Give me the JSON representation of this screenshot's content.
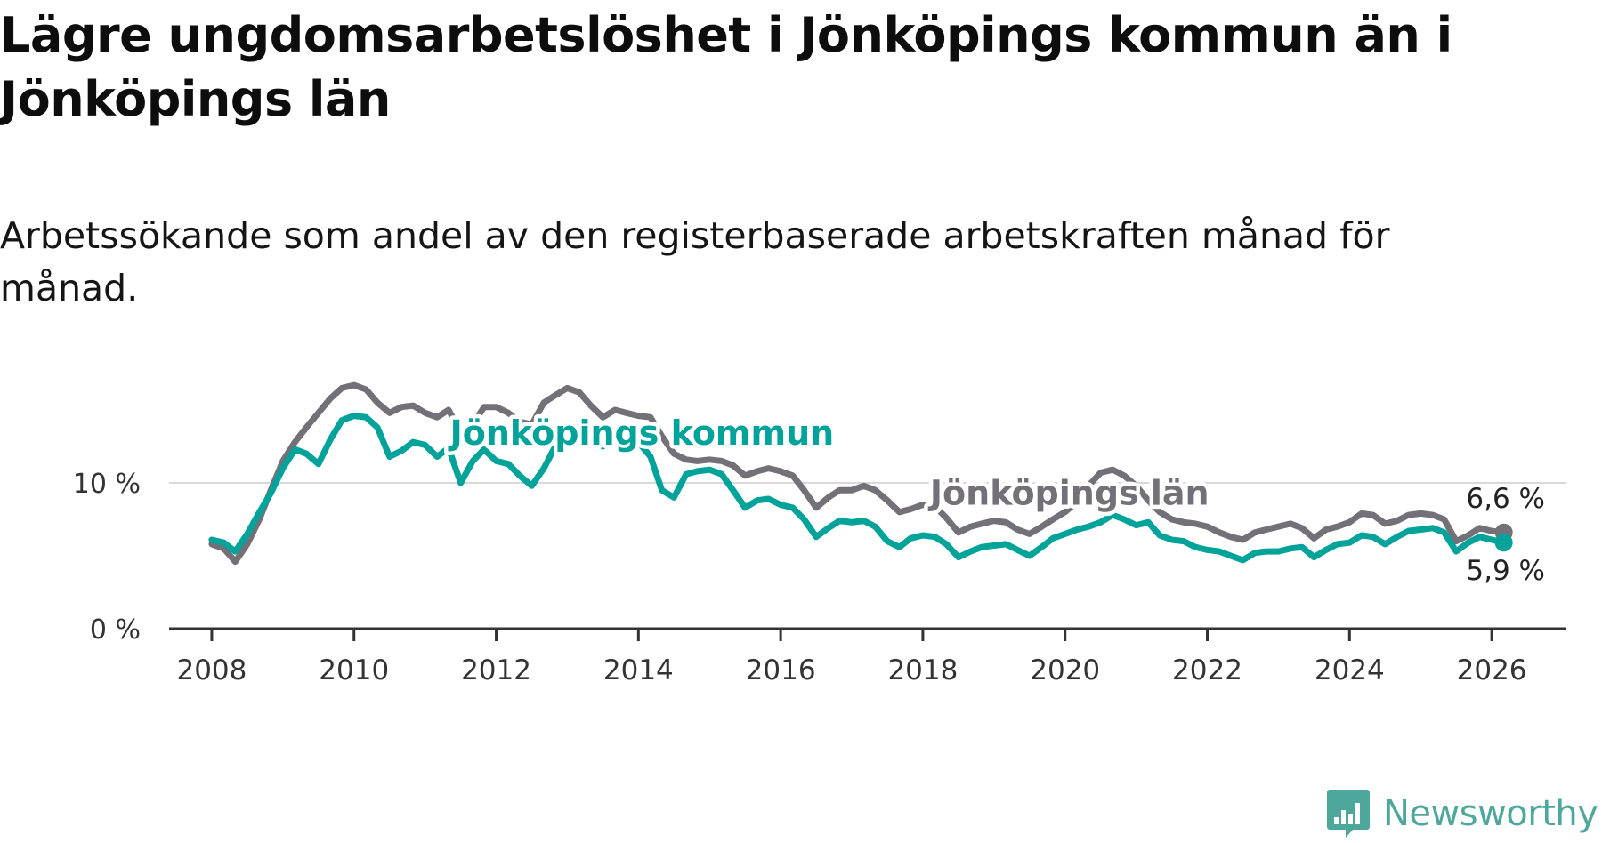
{
  "header": {
    "title": "Lägre ungdomsarbetslöshet i Jönköpings kommun än i Jönköpings län",
    "subtitle": "Arbetssökande som andel av den registerbaserade arbetskraften månad för månad."
  },
  "brand": {
    "name": "Newsworthy",
    "icon": "newsworthy-logo-icon",
    "color": "#4da79b"
  },
  "chart_data": {
    "type": "line",
    "title": "Lägre ungdomsarbetslöshet i Jönköpings kommun än i Jönköpings län",
    "subtitle": "Arbetssökande som andel av den registerbaserade arbetskraften månad för månad.",
    "xlabel": "",
    "ylabel": "",
    "xlim": [
      2007.4,
      2027.05
    ],
    "ylim": [
      0,
      17.5
    ],
    "x_ticks": [
      2008,
      2010,
      2012,
      2014,
      2016,
      2018,
      2020,
      2022,
      2024,
      2026
    ],
    "x_tick_labels": [
      "2008",
      "2010",
      "2012",
      "2014",
      "2016",
      "2018",
      "2020",
      "2022",
      "2024",
      "2026"
    ],
    "y_ticks": [
      0,
      10
    ],
    "y_tick_labels": [
      "0 %",
      "10 %"
    ],
    "grid": "horizontal",
    "legend": "inline labels",
    "series": [
      {
        "name": "Jönköpings län",
        "color": "#737177",
        "label": "Jönköpings län",
        "end_label": "6,6 %",
        "points": [
          [
            2008.0,
            5.8
          ],
          [
            2008.17,
            5.5
          ],
          [
            2008.33,
            4.6
          ],
          [
            2008.5,
            5.8
          ],
          [
            2008.67,
            7.5
          ],
          [
            2008.83,
            9.5
          ],
          [
            2009.0,
            11.5
          ],
          [
            2009.17,
            12.8
          ],
          [
            2009.33,
            13.8
          ],
          [
            2009.5,
            14.8
          ],
          [
            2009.67,
            15.8
          ],
          [
            2009.83,
            16.5
          ],
          [
            2010.0,
            16.7
          ],
          [
            2010.17,
            16.4
          ],
          [
            2010.33,
            15.5
          ],
          [
            2010.5,
            14.8
          ],
          [
            2010.67,
            15.2
          ],
          [
            2010.83,
            15.3
          ],
          [
            2011.0,
            14.8
          ],
          [
            2011.17,
            14.5
          ],
          [
            2011.33,
            15.0
          ],
          [
            2011.5,
            13.5
          ],
          [
            2011.67,
            14.0
          ],
          [
            2011.83,
            15.2
          ],
          [
            2012.0,
            15.2
          ],
          [
            2012.17,
            14.8
          ],
          [
            2012.33,
            14.2
          ],
          [
            2012.5,
            14.0
          ],
          [
            2012.67,
            15.5
          ],
          [
            2012.83,
            16.0
          ],
          [
            2013.0,
            16.5
          ],
          [
            2013.17,
            16.2
          ],
          [
            2013.33,
            15.3
          ],
          [
            2013.5,
            14.5
          ],
          [
            2013.67,
            15.0
          ],
          [
            2013.83,
            14.8
          ],
          [
            2014.0,
            14.6
          ],
          [
            2014.17,
            14.5
          ],
          [
            2014.33,
            13.2
          ],
          [
            2014.5,
            12.0
          ],
          [
            2014.67,
            11.6
          ],
          [
            2014.83,
            11.5
          ],
          [
            2015.0,
            11.6
          ],
          [
            2015.17,
            11.5
          ],
          [
            2015.33,
            11.2
          ],
          [
            2015.5,
            10.5
          ],
          [
            2015.67,
            10.8
          ],
          [
            2015.83,
            11.0
          ],
          [
            2016.0,
            10.8
          ],
          [
            2016.17,
            10.5
          ],
          [
            2016.33,
            9.5
          ],
          [
            2016.5,
            8.3
          ],
          [
            2016.67,
            9.0
          ],
          [
            2016.83,
            9.5
          ],
          [
            2017.0,
            9.5
          ],
          [
            2017.17,
            9.8
          ],
          [
            2017.33,
            9.5
          ],
          [
            2017.5,
            8.8
          ],
          [
            2017.67,
            8.0
          ],
          [
            2017.83,
            8.2
          ],
          [
            2018.0,
            8.5
          ],
          [
            2018.17,
            8.4
          ],
          [
            2018.33,
            7.6
          ],
          [
            2018.5,
            6.6
          ],
          [
            2018.67,
            7.0
          ],
          [
            2018.83,
            7.2
          ],
          [
            2019.0,
            7.4
          ],
          [
            2019.17,
            7.3
          ],
          [
            2019.33,
            6.8
          ],
          [
            2019.5,
            6.5
          ],
          [
            2019.67,
            7.0
          ],
          [
            2019.83,
            7.5
          ],
          [
            2020.0,
            8.0
          ],
          [
            2020.17,
            8.7
          ],
          [
            2020.33,
            9.8
          ],
          [
            2020.5,
            10.7
          ],
          [
            2020.67,
            10.9
          ],
          [
            2020.83,
            10.5
          ],
          [
            2021.0,
            9.8
          ],
          [
            2021.17,
            8.8
          ],
          [
            2021.33,
            8.0
          ],
          [
            2021.5,
            7.5
          ],
          [
            2021.67,
            7.3
          ],
          [
            2021.83,
            7.2
          ],
          [
            2022.0,
            7.0
          ],
          [
            2022.17,
            6.6
          ],
          [
            2022.33,
            6.3
          ],
          [
            2022.5,
            6.1
          ],
          [
            2022.67,
            6.6
          ],
          [
            2022.83,
            6.8
          ],
          [
            2023.0,
            7.0
          ],
          [
            2023.17,
            7.2
          ],
          [
            2023.33,
            6.9
          ],
          [
            2023.5,
            6.2
          ],
          [
            2023.67,
            6.8
          ],
          [
            2023.83,
            7.0
          ],
          [
            2024.0,
            7.3
          ],
          [
            2024.17,
            7.9
          ],
          [
            2024.33,
            7.8
          ],
          [
            2024.5,
            7.2
          ],
          [
            2024.67,
            7.4
          ],
          [
            2024.83,
            7.8
          ],
          [
            2025.0,
            7.9
          ],
          [
            2025.17,
            7.8
          ],
          [
            2025.33,
            7.5
          ],
          [
            2025.5,
            6.0
          ],
          [
            2025.67,
            6.4
          ],
          [
            2025.83,
            6.9
          ],
          [
            2026.0,
            6.7
          ],
          [
            2026.17,
            6.6
          ]
        ]
      },
      {
        "name": "Jönköpings kommun",
        "color": "#00a39a",
        "label": "Jönköpings kommun",
        "end_label": "5,9 %",
        "points": [
          [
            2008.0,
            6.1
          ],
          [
            2008.17,
            5.9
          ],
          [
            2008.33,
            5.3
          ],
          [
            2008.5,
            6.5
          ],
          [
            2008.67,
            8.0
          ],
          [
            2008.83,
            9.3
          ],
          [
            2009.0,
            11.0
          ],
          [
            2009.17,
            12.3
          ],
          [
            2009.33,
            12.0
          ],
          [
            2009.5,
            11.3
          ],
          [
            2009.67,
            13.0
          ],
          [
            2009.83,
            14.3
          ],
          [
            2010.0,
            14.6
          ],
          [
            2010.17,
            14.5
          ],
          [
            2010.33,
            13.8
          ],
          [
            2010.5,
            11.8
          ],
          [
            2010.67,
            12.2
          ],
          [
            2010.83,
            12.8
          ],
          [
            2011.0,
            12.6
          ],
          [
            2011.17,
            11.8
          ],
          [
            2011.33,
            12.4
          ],
          [
            2011.5,
            10.0
          ],
          [
            2011.67,
            11.5
          ],
          [
            2011.83,
            12.3
          ],
          [
            2012.0,
            11.5
          ],
          [
            2012.17,
            11.3
          ],
          [
            2012.33,
            10.5
          ],
          [
            2012.5,
            9.8
          ],
          [
            2012.67,
            11.0
          ],
          [
            2012.83,
            12.5
          ],
          [
            2013.0,
            13.8
          ],
          [
            2013.17,
            13.8
          ],
          [
            2013.33,
            13.2
          ],
          [
            2013.5,
            12.5
          ],
          [
            2013.67,
            13.2
          ],
          [
            2013.83,
            13.5
          ],
          [
            2014.0,
            12.8
          ],
          [
            2014.17,
            11.8
          ],
          [
            2014.33,
            9.5
          ],
          [
            2014.5,
            9.0
          ],
          [
            2014.67,
            10.6
          ],
          [
            2014.83,
            10.8
          ],
          [
            2015.0,
            10.9
          ],
          [
            2015.17,
            10.6
          ],
          [
            2015.33,
            9.5
          ],
          [
            2015.5,
            8.3
          ],
          [
            2015.67,
            8.8
          ],
          [
            2015.83,
            8.9
          ],
          [
            2016.0,
            8.5
          ],
          [
            2016.17,
            8.3
          ],
          [
            2016.33,
            7.5
          ],
          [
            2016.5,
            6.3
          ],
          [
            2016.67,
            6.9
          ],
          [
            2016.83,
            7.4
          ],
          [
            2017.0,
            7.3
          ],
          [
            2017.17,
            7.4
          ],
          [
            2017.33,
            7.0
          ],
          [
            2017.5,
            6.0
          ],
          [
            2017.67,
            5.6
          ],
          [
            2017.83,
            6.2
          ],
          [
            2018.0,
            6.4
          ],
          [
            2018.17,
            6.3
          ],
          [
            2018.33,
            5.8
          ],
          [
            2018.5,
            4.9
          ],
          [
            2018.67,
            5.3
          ],
          [
            2018.83,
            5.6
          ],
          [
            2019.0,
            5.7
          ],
          [
            2019.17,
            5.8
          ],
          [
            2019.33,
            5.4
          ],
          [
            2019.5,
            5.0
          ],
          [
            2019.67,
            5.6
          ],
          [
            2019.83,
            6.2
          ],
          [
            2020.0,
            6.5
          ],
          [
            2020.17,
            6.8
          ],
          [
            2020.33,
            7.0
          ],
          [
            2020.5,
            7.3
          ],
          [
            2020.67,
            7.8
          ],
          [
            2020.83,
            7.5
          ],
          [
            2021.0,
            7.1
          ],
          [
            2021.17,
            7.3
          ],
          [
            2021.33,
            6.4
          ],
          [
            2021.5,
            6.1
          ],
          [
            2021.67,
            6.0
          ],
          [
            2021.83,
            5.6
          ],
          [
            2022.0,
            5.4
          ],
          [
            2022.17,
            5.3
          ],
          [
            2022.33,
            5.0
          ],
          [
            2022.5,
            4.7
          ],
          [
            2022.67,
            5.2
          ],
          [
            2022.83,
            5.3
          ],
          [
            2023.0,
            5.3
          ],
          [
            2023.17,
            5.5
          ],
          [
            2023.33,
            5.6
          ],
          [
            2023.5,
            4.9
          ],
          [
            2023.67,
            5.4
          ],
          [
            2023.83,
            5.8
          ],
          [
            2024.0,
            5.9
          ],
          [
            2024.17,
            6.4
          ],
          [
            2024.33,
            6.3
          ],
          [
            2024.5,
            5.8
          ],
          [
            2024.67,
            6.3
          ],
          [
            2024.83,
            6.7
          ],
          [
            2025.0,
            6.8
          ],
          [
            2025.17,
            6.9
          ],
          [
            2025.33,
            6.6
          ],
          [
            2025.5,
            5.3
          ],
          [
            2025.67,
            5.9
          ],
          [
            2025.83,
            6.3
          ],
          [
            2026.0,
            6.1
          ],
          [
            2026.17,
            5.9
          ]
        ]
      }
    ]
  }
}
